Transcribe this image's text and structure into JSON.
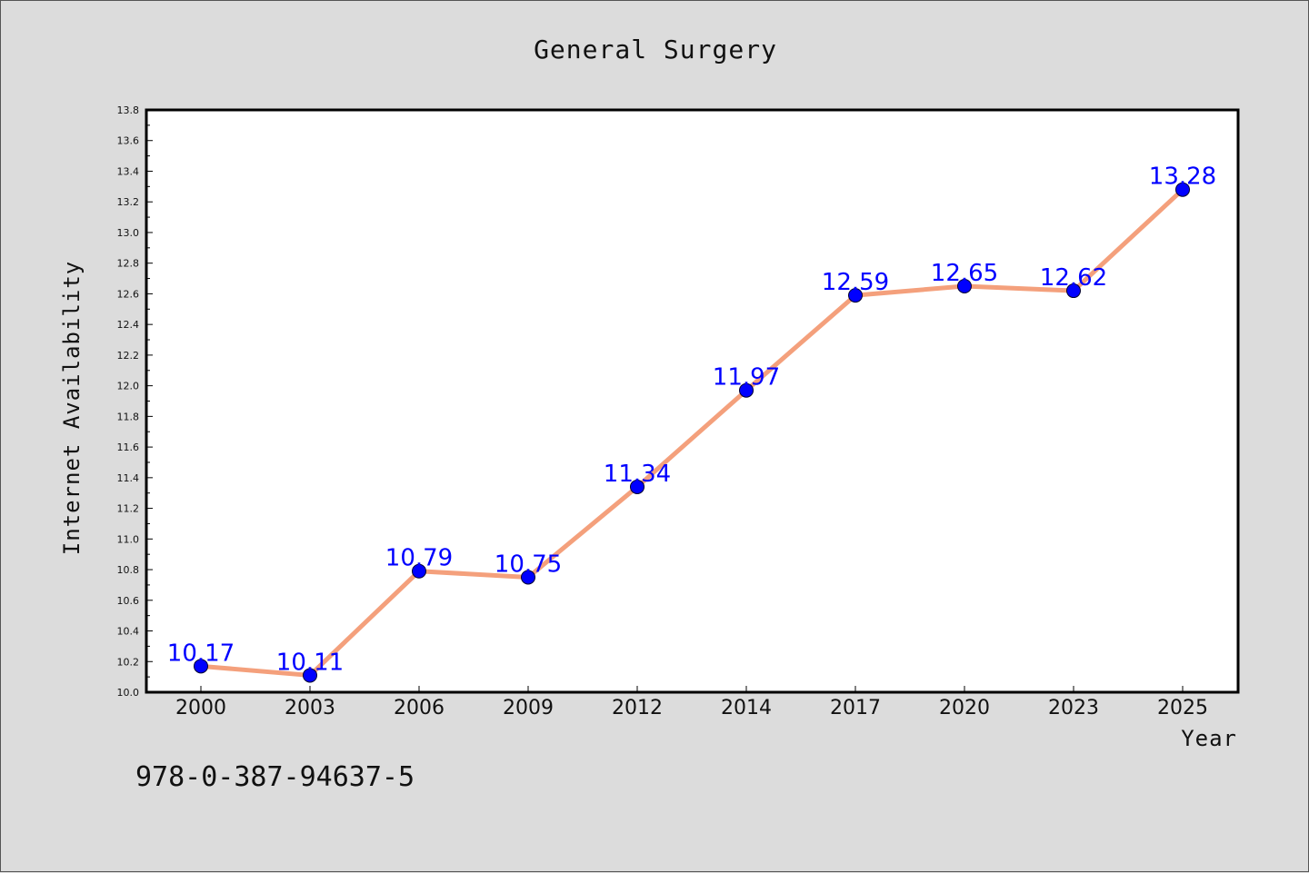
{
  "chart_data": {
    "type": "line",
    "title": "General Surgery",
    "xlabel": "Year",
    "ylabel": "Internet Availability",
    "categories": [
      "2000",
      "2003",
      "2006",
      "2009",
      "2012",
      "2014",
      "2017",
      "2020",
      "2023",
      "2025"
    ],
    "series": [
      {
        "values": [
          10.17,
          10.11,
          10.79,
          10.75,
          11.34,
          11.97,
          12.59,
          12.65,
          12.62,
          13.28
        ],
        "data_labels": [
          "10.17",
          "10.11",
          "10.79",
          "10.75",
          "11.34",
          "11.97",
          "12.59",
          "12.65",
          "12.62",
          "13.28"
        ],
        "line_color": "#f4a07c",
        "marker_color": "#0000ff"
      }
    ],
    "ylim": [
      10.0,
      13.8
    ],
    "yticks": [
      10.0,
      10.2,
      10.4,
      10.6,
      10.8,
      11.0,
      11.2,
      11.4,
      11.6,
      11.8,
      12.0,
      12.2,
      12.4,
      12.6,
      12.8,
      13.0,
      13.2,
      13.4,
      13.6,
      13.8
    ],
    "ytick_labels": [
      "10.0",
      "10.2",
      "10.4",
      "10.6",
      "10.8",
      "11.0",
      "11.2",
      "11.4",
      "11.6",
      "11.8",
      "12.0",
      "12.2",
      "12.4",
      "12.6",
      "12.8",
      "13.0",
      "13.2",
      "13.4",
      "13.6",
      "13.8"
    ],
    "grid": false,
    "legend": "none",
    "label_color": "#0000ff"
  },
  "footer": {
    "code": "978-0-387-94637-5"
  },
  "colors": {
    "background": "#dcdcdc",
    "plot_area": "#ffffff",
    "axis": "#000000"
  }
}
